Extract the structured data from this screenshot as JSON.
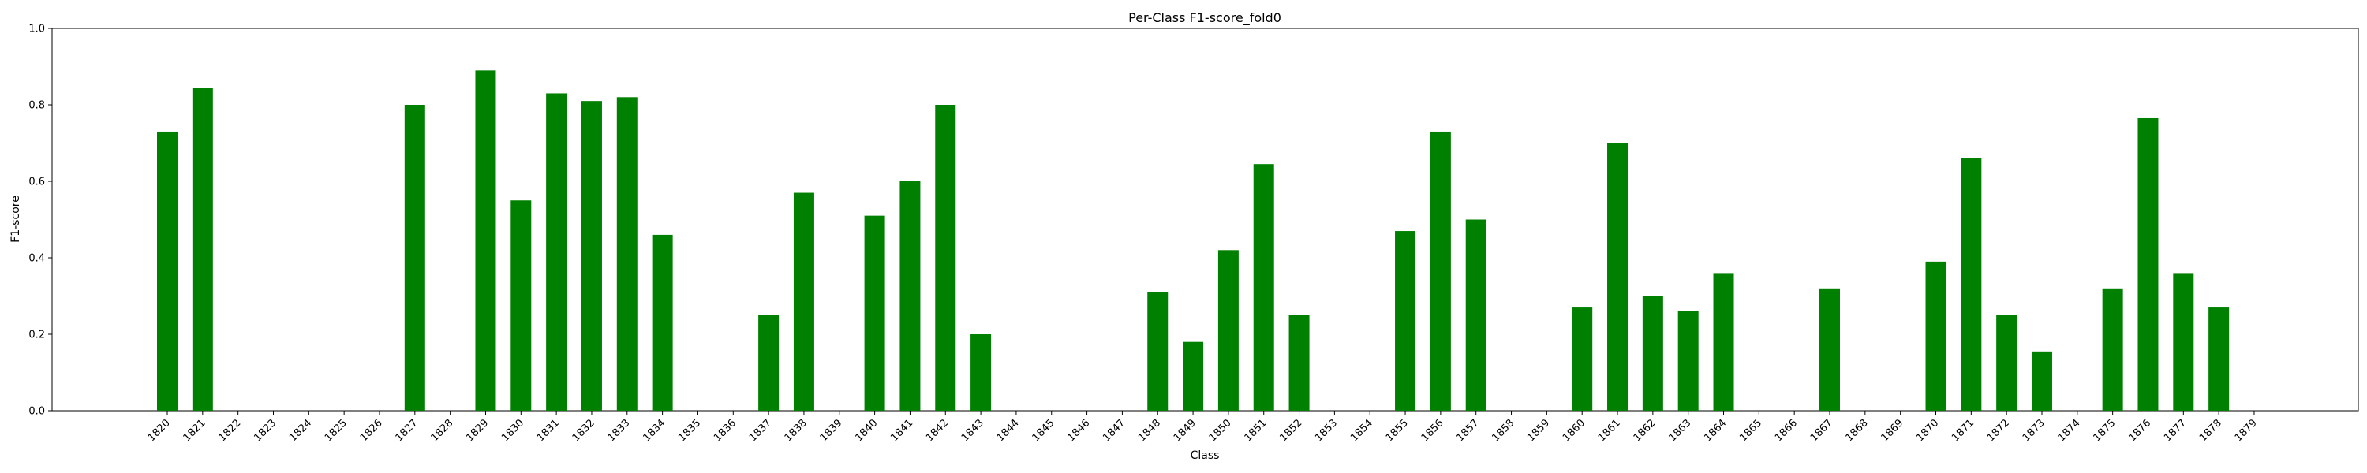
{
  "chart_data": {
    "type": "bar",
    "title": "Per-Class F1-score_fold0",
    "xlabel": "Class",
    "ylabel": "F1-score",
    "ylim": [
      0,
      1.0
    ],
    "yticks": [
      "0.0",
      "0.2",
      "0.4",
      "0.6",
      "0.8",
      "1.0"
    ],
    "bar_color": "#008000",
    "grid": false,
    "categories": [
      "1820",
      "1821",
      "1822",
      "1823",
      "1824",
      "1825",
      "1826",
      "1827",
      "1828",
      "1829",
      "1830",
      "1831",
      "1832",
      "1833",
      "1834",
      "1835",
      "1836",
      "1837",
      "1838",
      "1839",
      "1840",
      "1841",
      "1842",
      "1843",
      "1844",
      "1845",
      "1846",
      "1847",
      "1848",
      "1849",
      "1850",
      "1851",
      "1852",
      "1853",
      "1854",
      "1855",
      "1856",
      "1857",
      "1858",
      "1859",
      "1860",
      "1861",
      "1862",
      "1863",
      "1864",
      "1865",
      "1866",
      "1867",
      "1868",
      "1869",
      "1870",
      "1871",
      "1872",
      "1873",
      "1874",
      "1875",
      "1876",
      "1877",
      "1878",
      "1879"
    ],
    "values": [
      0.73,
      0.845,
      0,
      0,
      0,
      0,
      0,
      0.8,
      0,
      0.89,
      0.55,
      0.83,
      0.81,
      0.82,
      0.46,
      0,
      0,
      0.25,
      0.57,
      0,
      0.51,
      0.6,
      0.8,
      0.2,
      0,
      0,
      0,
      0,
      0.31,
      0.18,
      0.42,
      0.645,
      0.25,
      0,
      0,
      0.47,
      0.73,
      0.5,
      0,
      0,
      0.27,
      0.7,
      0.3,
      0.26,
      0.36,
      0,
      0,
      0.32,
      0,
      0,
      0.39,
      0.66,
      0.25,
      0.155,
      0,
      0.32,
      0.765,
      0.36,
      0.27,
      0
    ]
  }
}
